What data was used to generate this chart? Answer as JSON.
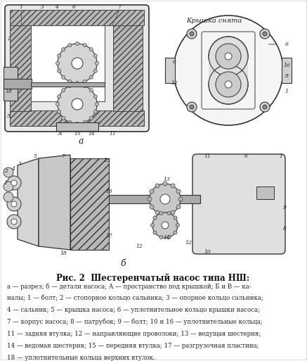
{
  "title": "Рис. 2  Шестеренчатый насос типа НШ:",
  "caption_lines": [
    "а — разрез; б — детали насоса; А — пространство под крышкой; Б и В — ка-",
    "налы; 1 — болт; 2 — стопорное кольцо сальника; 3 — опорное кольцо сальника;",
    "4 — сальник; 5 — крышка насоса; 6 — уплотнительное кольцо крышки насоса;",
    "7 — корпус насоса; 8 — патрубок; 9 — болт; 10 и 16 — уплотнительные кольца;",
    "11 — задняя втулка; 12 — направляющие проволоки; 13 — ведущая шестерня;",
    "14 — ведомая шестерня; 15 — передняя втулка; 17 — разгрузочная пластина;",
    "18 — уплотнительные кольца верхних втулок."
  ],
  "bg_color": "#ffffff",
  "image_path": null,
  "fig_width": 4.37,
  "fig_height": 5.12,
  "dpi": 100
}
